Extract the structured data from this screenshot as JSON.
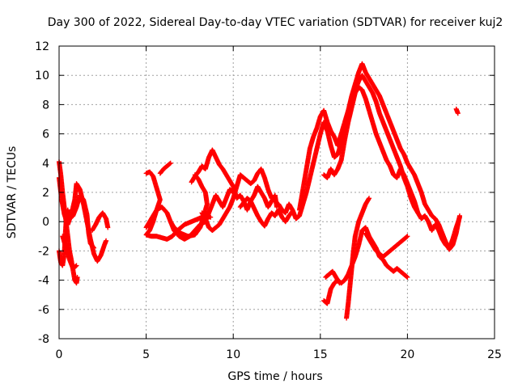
{
  "chart_data": {
    "type": "scatter",
    "title": "Day 300 of 2022, Sidereal Day-to-day VTEC variation (SDTVAR) for receiver kuj2",
    "xlabel": "GPS time / hours",
    "ylabel": "SDTVAR / TECUs",
    "xlim": [
      0,
      25
    ],
    "ylim": [
      -8,
      12
    ],
    "xticks": [
      "0",
      "5",
      "10",
      "15",
      "20",
      "25"
    ],
    "yticks": [
      "-8",
      "-6",
      "-4",
      "-2",
      "0",
      "2",
      "4",
      "6",
      "8",
      "10",
      "12"
    ],
    "grid": true,
    "marker": "plus",
    "color": "#ff0000",
    "tracks": [
      [
        [
          0.0,
          4.1
        ],
        [
          0.1,
          3.2
        ],
        [
          0.2,
          2.0
        ],
        [
          0.3,
          1.0
        ],
        [
          0.4,
          0.0
        ],
        [
          0.5,
          -1.0
        ],
        [
          0.6,
          -2.0
        ],
        [
          0.7,
          -2.6
        ],
        [
          0.8,
          -3.3
        ],
        [
          0.9,
          -4.0
        ],
        [
          1.0,
          -4.2
        ],
        [
          1.05,
          -3.8
        ]
      ],
      [
        [
          0.0,
          -2.0
        ],
        [
          0.1,
          -2.8
        ],
        [
          0.2,
          -3.0
        ],
        [
          0.3,
          -2.2
        ],
        [
          0.35,
          -1.0
        ],
        [
          0.4,
          0.0
        ],
        [
          0.5,
          0.8
        ],
        [
          0.6,
          0.2
        ],
        [
          0.8,
          0.4
        ],
        [
          1.0,
          1.0
        ],
        [
          1.2,
          1.8
        ],
        [
          1.4,
          1.5
        ],
        [
          1.6,
          0.5
        ],
        [
          1.7,
          -0.8
        ],
        [
          1.8,
          -1.5
        ],
        [
          2.0,
          -1.8
        ]
      ],
      [
        [
          0.0,
          3.0
        ],
        [
          0.15,
          1.5
        ],
        [
          0.3,
          0.5
        ],
        [
          0.5,
          -0.2
        ],
        [
          0.7,
          0.5
        ],
        [
          0.9,
          1.5
        ],
        [
          1.0,
          2.6
        ],
        [
          1.2,
          2.2
        ],
        [
          1.4,
          1.2
        ],
        [
          1.6,
          0.0
        ],
        [
          1.8,
          -1.2
        ],
        [
          2.0,
          -2.2
        ],
        [
          2.2,
          -2.7
        ],
        [
          2.4,
          -2.3
        ],
        [
          2.6,
          -1.6
        ],
        [
          2.7,
          -1.3
        ]
      ],
      [
        [
          0.2,
          -1.0
        ],
        [
          0.4,
          -1.8
        ],
        [
          0.6,
          -2.6
        ],
        [
          0.8,
          -3.2
        ],
        [
          1.0,
          -3.0
        ]
      ],
      [
        [
          1.9,
          -0.6
        ],
        [
          2.1,
          -0.2
        ],
        [
          2.3,
          0.3
        ],
        [
          2.5,
          0.6
        ],
        [
          2.7,
          0.2
        ],
        [
          2.8,
          -0.4
        ]
      ],
      [
        [
          5.0,
          3.3
        ],
        [
          5.2,
          3.4
        ],
        [
          5.4,
          3.1
        ],
        [
          5.6,
          2.3
        ],
        [
          5.8,
          1.5
        ],
        [
          5.6,
          0.8
        ],
        [
          5.4,
          0.0
        ],
        [
          5.2,
          -0.6
        ],
        [
          5.0,
          -0.9
        ],
        [
          5.3,
          -1.0
        ],
        [
          5.6,
          -1.0
        ],
        [
          5.9,
          -1.1
        ],
        [
          6.2,
          -1.2
        ],
        [
          6.5,
          -1.0
        ],
        [
          6.8,
          -0.6
        ],
        [
          7.2,
          -0.2
        ],
        [
          7.6,
          0.0
        ],
        [
          8.0,
          0.2
        ],
        [
          8.4,
          0.4
        ],
        [
          8.7,
          0.3
        ]
      ],
      [
        [
          5.0,
          -0.4
        ],
        [
          5.3,
          0.2
        ],
        [
          5.6,
          0.8
        ],
        [
          5.9,
          1.0
        ],
        [
          6.2,
          0.6
        ],
        [
          6.4,
          0.0
        ],
        [
          6.6,
          -0.6
        ],
        [
          6.9,
          -1.0
        ],
        [
          7.2,
          -1.2
        ],
        [
          7.5,
          -1.0
        ],
        [
          7.8,
          -0.6
        ],
        [
          8.1,
          -0.2
        ],
        [
          8.4,
          0.0
        ],
        [
          8.6,
          0.6
        ],
        [
          8.8,
          1.2
        ],
        [
          9.0,
          1.8
        ],
        [
          9.2,
          1.4
        ],
        [
          9.4,
          1.0
        ],
        [
          9.6,
          1.6
        ],
        [
          9.8,
          2.2
        ],
        [
          10.0,
          2.0
        ]
      ],
      [
        [
          5.8,
          3.3
        ],
        [
          6.0,
          3.6
        ],
        [
          6.2,
          3.8
        ],
        [
          6.4,
          4.0
        ]
      ],
      [
        [
          7.8,
          3.2
        ],
        [
          8.0,
          2.9
        ],
        [
          8.2,
          2.4
        ],
        [
          8.4,
          2.0
        ],
        [
          8.5,
          1.2
        ],
        [
          8.3,
          0.4
        ],
        [
          8.1,
          -0.4
        ],
        [
          7.8,
          -0.9
        ],
        [
          7.4,
          -1.0
        ],
        [
          7.0,
          -0.8
        ],
        [
          6.6,
          -0.4
        ],
        [
          6.4,
          0.0
        ]
      ],
      [
        [
          7.6,
          2.7
        ],
        [
          7.8,
          3.1
        ],
        [
          8.0,
          3.4
        ],
        [
          8.2,
          3.8
        ],
        [
          8.4,
          3.6
        ],
        [
          8.6,
          4.4
        ],
        [
          8.8,
          4.9
        ],
        [
          9.0,
          4.4
        ],
        [
          9.2,
          3.9
        ],
        [
          9.4,
          3.6
        ],
        [
          9.6,
          3.2
        ],
        [
          9.8,
          2.8
        ],
        [
          10.0,
          2.4
        ],
        [
          10.2,
          1.6
        ],
        [
          10.4,
          1.8
        ],
        [
          10.6,
          1.4
        ],
        [
          10.8,
          0.8
        ],
        [
          11.0,
          1.4
        ],
        [
          11.2,
          1.8
        ],
        [
          11.4,
          2.4
        ],
        [
          11.6,
          2.0
        ],
        [
          11.8,
          1.6
        ],
        [
          12.0,
          1.0
        ],
        [
          12.2,
          1.4
        ],
        [
          12.4,
          1.8
        ],
        [
          12.5,
          1.0
        ]
      ],
      [
        [
          8.2,
          0.6
        ],
        [
          8.4,
          0.2
        ],
        [
          8.6,
          -0.4
        ],
        [
          8.8,
          -0.6
        ],
        [
          9.0,
          -0.4
        ],
        [
          9.2,
          -0.2
        ],
        [
          9.4,
          0.2
        ],
        [
          9.6,
          0.6
        ],
        [
          9.8,
          1.0
        ],
        [
          10.0,
          1.6
        ],
        [
          10.2,
          2.4
        ],
        [
          10.4,
          3.2
        ],
        [
          10.6,
          3.0
        ],
        [
          10.8,
          2.8
        ],
        [
          11.0,
          2.6
        ],
        [
          11.2,
          2.8
        ],
        [
          11.4,
          3.3
        ],
        [
          11.6,
          3.6
        ],
        [
          11.8,
          3.0
        ],
        [
          12.0,
          2.2
        ],
        [
          12.2,
          1.6
        ]
      ],
      [
        [
          10.4,
          1.0
        ],
        [
          10.6,
          1.3
        ],
        [
          10.8,
          1.6
        ],
        [
          11.0,
          1.4
        ],
        [
          11.2,
          0.9
        ],
        [
          11.4,
          0.4
        ],
        [
          11.6,
          0.0
        ],
        [
          11.8,
          -0.3
        ],
        [
          12.0,
          0.2
        ],
        [
          12.2,
          0.6
        ],
        [
          12.4,
          0.4
        ],
        [
          12.6,
          0.8
        ],
        [
          12.8,
          0.3
        ],
        [
          13.0,
          0.0
        ],
        [
          13.2,
          0.4
        ],
        [
          13.4,
          0.7
        ]
      ],
      [
        [
          12.6,
          1.2
        ],
        [
          12.8,
          0.8
        ],
        [
          13.0,
          0.6
        ],
        [
          13.2,
          1.2
        ],
        [
          13.4,
          0.8
        ],
        [
          13.6,
          0.2
        ],
        [
          13.8,
          0.4
        ],
        [
          14.0,
          1.2
        ],
        [
          14.2,
          2.0
        ],
        [
          14.4,
          3.0
        ],
        [
          14.6,
          4.0
        ],
        [
          14.8,
          5.0
        ],
        [
          15.0,
          6.0
        ],
        [
          15.2,
          6.8
        ],
        [
          15.4,
          6.2
        ],
        [
          15.6,
          5.2
        ],
        [
          15.8,
          4.4
        ],
        [
          16.0,
          4.6
        ],
        [
          16.2,
          5.4
        ],
        [
          16.4,
          6.4
        ],
        [
          16.6,
          7.2
        ],
        [
          16.8,
          8.2
        ],
        [
          17.0,
          9.0
        ],
        [
          17.2,
          9.6
        ],
        [
          17.4,
          10.0
        ],
        [
          17.6,
          9.6
        ],
        [
          17.8,
          9.2
        ],
        [
          18.0,
          8.8
        ],
        [
          18.2,
          8.2
        ],
        [
          18.4,
          7.4
        ],
        [
          18.6,
          6.8
        ],
        [
          18.8,
          6.2
        ],
        [
          19.0,
          5.6
        ],
        [
          19.2,
          5.0
        ],
        [
          19.4,
          4.4
        ],
        [
          19.6,
          3.8
        ],
        [
          19.8,
          3.0
        ],
        [
          20.0,
          2.4
        ],
        [
          20.2,
          1.6
        ],
        [
          20.4,
          1.0
        ],
        [
          20.6,
          0.6
        ],
        [
          20.8,
          0.2
        ],
        [
          21.0,
          0.4
        ],
        [
          21.2,
          0.0
        ],
        [
          21.4,
          -0.6
        ],
        [
          21.6,
          -0.2
        ],
        [
          21.8,
          -0.6
        ],
        [
          22.0,
          -1.2
        ],
        [
          22.2,
          -1.6
        ],
        [
          22.4,
          -1.8
        ],
        [
          22.6,
          -1.2
        ],
        [
          22.8,
          -0.4
        ],
        [
          23.0,
          0.3
        ]
      ],
      [
        [
          13.8,
          0.8
        ],
        [
          14.0,
          2.2
        ],
        [
          14.2,
          3.6
        ],
        [
          14.4,
          5.0
        ],
        [
          14.6,
          5.8
        ],
        [
          14.8,
          6.4
        ],
        [
          15.0,
          7.2
        ],
        [
          15.2,
          7.6
        ],
        [
          15.4,
          6.8
        ],
        [
          15.6,
          6.2
        ],
        [
          15.8,
          5.8
        ],
        [
          16.0,
          5.2
        ],
        [
          16.2,
          6.0
        ],
        [
          16.4,
          6.8
        ],
        [
          16.6,
          7.6
        ],
        [
          16.8,
          8.6
        ],
        [
          17.0,
          9.4
        ],
        [
          17.2,
          10.2
        ],
        [
          17.4,
          10.8
        ],
        [
          17.6,
          10.2
        ],
        [
          17.8,
          9.8
        ],
        [
          18.0,
          9.4
        ],
        [
          18.2,
          9.0
        ],
        [
          18.4,
          8.6
        ],
        [
          18.6,
          8.0
        ],
        [
          18.8,
          7.4
        ],
        [
          19.0,
          6.8
        ],
        [
          19.2,
          6.2
        ],
        [
          19.4,
          5.6
        ],
        [
          19.6,
          5.0
        ],
        [
          19.8,
          4.6
        ],
        [
          20.0,
          4.0
        ],
        [
          20.2,
          3.6
        ],
        [
          20.4,
          3.2
        ],
        [
          20.6,
          2.6
        ],
        [
          20.8,
          2.0
        ],
        [
          21.0,
          1.2
        ],
        [
          21.2,
          0.8
        ],
        [
          21.4,
          0.4
        ],
        [
          21.6,
          0.2
        ],
        [
          21.8,
          -0.2
        ],
        [
          22.0,
          -0.8
        ],
        [
          22.2,
          -1.4
        ],
        [
          22.4,
          -1.9
        ],
        [
          22.6,
          -1.6
        ],
        [
          22.8,
          -0.8
        ],
        [
          23.0,
          0.4
        ]
      ],
      [
        [
          15.2,
          3.2
        ],
        [
          15.4,
          3.0
        ],
        [
          15.6,
          3.6
        ],
        [
          15.8,
          3.2
        ],
        [
          16.0,
          3.6
        ],
        [
          16.2,
          4.2
        ],
        [
          16.4,
          5.6
        ],
        [
          16.6,
          6.8
        ],
        [
          16.8,
          7.8
        ],
        [
          17.0,
          8.8
        ],
        [
          17.2,
          9.2
        ],
        [
          17.4,
          9.0
        ],
        [
          17.6,
          8.4
        ],
        [
          17.8,
          7.6
        ],
        [
          18.0,
          6.8
        ],
        [
          18.2,
          6.0
        ],
        [
          18.4,
          5.4
        ],
        [
          18.6,
          4.8
        ],
        [
          18.8,
          4.2
        ],
        [
          19.0,
          3.8
        ],
        [
          19.2,
          3.2
        ],
        [
          19.4,
          3.0
        ],
        [
          19.6,
          3.6
        ],
        [
          19.8,
          3.2
        ],
        [
          20.0,
          2.6
        ],
        [
          20.2,
          2.0
        ],
        [
          20.4,
          1.4
        ],
        [
          20.6,
          0.6
        ]
      ],
      [
        [
          15.2,
          -5.4
        ],
        [
          15.4,
          -5.6
        ],
        [
          15.6,
          -4.6
        ],
        [
          15.8,
          -4.2
        ],
        [
          16.0,
          -4.0
        ],
        [
          16.2,
          -4.2
        ],
        [
          16.4,
          -4.0
        ],
        [
          16.6,
          -3.6
        ],
        [
          16.8,
          -3.0
        ],
        [
          17.0,
          -2.4
        ],
        [
          17.2,
          -1.6
        ],
        [
          17.4,
          -0.6
        ],
        [
          17.6,
          -0.4
        ],
        [
          17.8,
          -1.0
        ],
        [
          18.0,
          -1.4
        ],
        [
          18.2,
          -1.8
        ],
        [
          18.4,
          -2.4
        ],
        [
          18.6,
          -2.6
        ],
        [
          18.8,
          -3.0
        ],
        [
          19.0,
          -3.2
        ],
        [
          19.2,
          -3.4
        ],
        [
          19.4,
          -3.2
        ],
        [
          19.6,
          -3.4
        ],
        [
          19.8,
          -3.6
        ],
        [
          20.0,
          -3.8
        ]
      ],
      [
        [
          15.3,
          -3.8
        ],
        [
          15.5,
          -3.6
        ],
        [
          15.7,
          -3.4
        ],
        [
          15.9,
          -3.8
        ],
        [
          16.1,
          -4.2
        ]
      ],
      [
        [
          16.5,
          -6.6
        ],
        [
          16.6,
          -5.6
        ],
        [
          16.7,
          -4.4
        ],
        [
          16.8,
          -3.2
        ],
        [
          16.9,
          -2.0
        ],
        [
          17.0,
          -1.0
        ],
        [
          17.2,
          0.0
        ],
        [
          17.4,
          0.6
        ],
        [
          17.6,
          1.2
        ],
        [
          17.8,
          1.6
        ]
      ],
      [
        [
          17.6,
          -0.8
        ],
        [
          17.8,
          -1.2
        ],
        [
          18.0,
          -1.6
        ],
        [
          18.2,
          -2.0
        ],
        [
          18.4,
          -2.2
        ],
        [
          18.6,
          -2.4
        ],
        [
          18.8,
          -2.2
        ],
        [
          19.0,
          -2.0
        ],
        [
          19.2,
          -1.8
        ],
        [
          19.4,
          -1.6
        ],
        [
          19.6,
          -1.4
        ],
        [
          19.8,
          -1.2
        ],
        [
          20.0,
          -1.0
        ]
      ],
      [
        [
          22.8,
          7.7
        ],
        [
          22.85,
          7.55
        ],
        [
          22.9,
          7.4
        ]
      ]
    ]
  }
}
